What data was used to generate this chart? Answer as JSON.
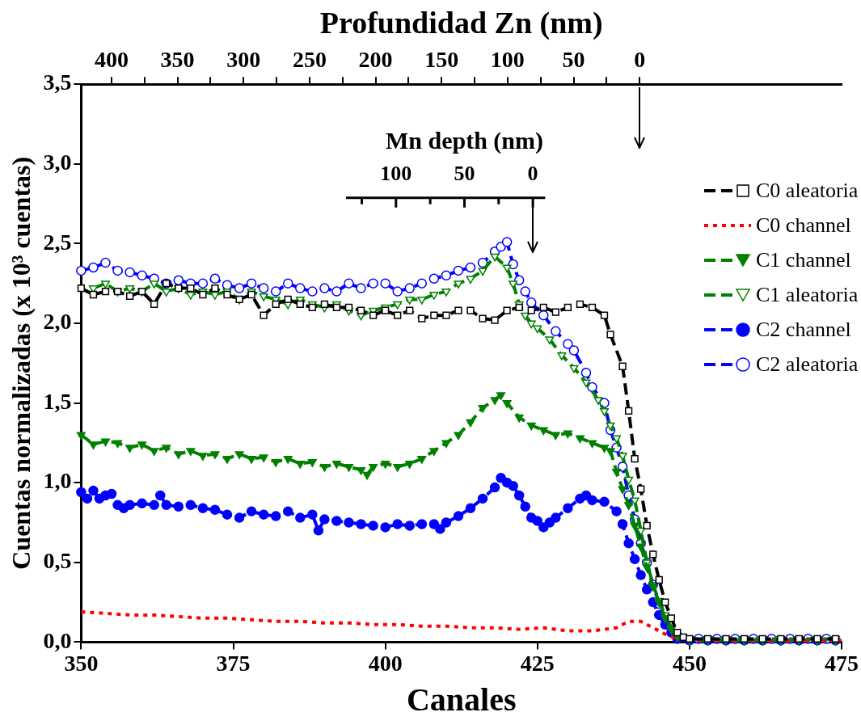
{
  "chart_data": {
    "type": "line",
    "xlabel": "Canales",
    "ylabel": "Cuentas normalizadas (x 10³ cuentas)",
    "x2label": "Profundidad Zn (nm)",
    "xlim": [
      350,
      475
    ],
    "xticks": [
      350,
      375,
      400,
      425,
      450,
      475
    ],
    "ylim": [
      0,
      3.5
    ],
    "yticks": [
      {
        "value": 0,
        "label": "0,0"
      },
      {
        "value": 0.5,
        "label": "0,5"
      },
      {
        "value": 1,
        "label": "1,0"
      },
      {
        "value": 1.5,
        "label": "1,5"
      },
      {
        "value": 2,
        "label": "2,0"
      },
      {
        "value": 2.5,
        "label": "2,5"
      },
      {
        "value": 3,
        "label": "3,0"
      },
      {
        "value": 3.5,
        "label": "3,5"
      }
    ],
    "x2lim": [
      423,
      -153
    ],
    "x2ticks": [
      400,
      {
        "value": 375,
        "label": null
      },
      350,
      {
        "value": 325,
        "label": null
      },
      300,
      {
        "value": 275,
        "label": null
      },
      250,
      {
        "value": 225,
        "label": null
      },
      200,
      {
        "value": 175,
        "label": null
      },
      150,
      {
        "value": 125,
        "label": null
      },
      100,
      {
        "value": 75,
        "label": null
      },
      50,
      {
        "value": 25,
        "label": null
      },
      0
    ],
    "annotations": [
      "Mn depth (nm)",
      "100",
      "50",
      "0"
    ],
    "ref_lines": [
      {
        "axis": "x2",
        "value": 0
      },
      {
        "axis": "x",
        "value": 424.3
      }
    ],
    "legend": "right",
    "grid": false,
    "series": [
      {
        "name": "C0 aleatoria",
        "color": "#000000",
        "marker": "square-open",
        "line_style": "dashed",
        "x": [
          350,
          352,
          354,
          356,
          358,
          360,
          362,
          364,
          366,
          368,
          370,
          372,
          374,
          376,
          378,
          380,
          382,
          384,
          386,
          388,
          390,
          392,
          394,
          396,
          398,
          400,
          402,
          404,
          406,
          408,
          410,
          412,
          414,
          416,
          418,
          420,
          422,
          424,
          426,
          428,
          430,
          432,
          434,
          436,
          437,
          439,
          440,
          441,
          442,
          443,
          444,
          445,
          446,
          447,
          448,
          449,
          450,
          453,
          456,
          459,
          462,
          465,
          468,
          471,
          474
        ],
        "values": [
          2.22,
          2.18,
          2.2,
          2.2,
          2.17,
          2.2,
          2.12,
          2.25,
          2.22,
          2.22,
          2.18,
          2.22,
          2.18,
          2.15,
          2.18,
          2.05,
          2.12,
          2.15,
          2.12,
          2.1,
          2.12,
          2.1,
          2.1,
          2.08,
          2.05,
          2.08,
          2.05,
          2.08,
          2.03,
          2.05,
          2.05,
          2.08,
          2.08,
          2.03,
          2.02,
          2.08,
          2.1,
          2.08,
          2.1,
          2.07,
          2.1,
          2.12,
          2.1,
          2.05,
          1.93,
          1.73,
          1.45,
          1.15,
          0.96,
          0.73,
          0.55,
          0.39,
          0.25,
          0.15,
          0.06,
          0.03,
          0.02,
          0.02,
          0.02,
          0.02,
          0.02,
          0.02,
          0.02,
          0.02,
          0.02
        ]
      },
      {
        "name": "C0 channel",
        "color": "#ff0000",
        "marker": "none",
        "line_style": "dotted",
        "x": [
          350,
          354,
          358,
          362,
          366,
          370,
          374,
          378,
          382,
          386,
          390,
          394,
          398,
          402,
          406,
          410,
          414,
          418,
          422,
          426,
          430,
          434,
          438,
          440,
          442,
          444,
          446,
          448,
          451,
          455,
          459,
          463,
          467,
          471,
          475
        ],
        "values": [
          0.19,
          0.18,
          0.17,
          0.17,
          0.16,
          0.15,
          0.15,
          0.14,
          0.13,
          0.13,
          0.12,
          0.12,
          0.11,
          0.11,
          0.1,
          0.1,
          0.09,
          0.09,
          0.08,
          0.09,
          0.07,
          0.07,
          0.09,
          0.13,
          0.13,
          0.09,
          0.05,
          0.02,
          0.01,
          0.01,
          0.01,
          0.01,
          0.01,
          0.01,
          0.01
        ]
      },
      {
        "name": "C1 channel",
        "color": "#008000",
        "marker": "triangle",
        "line_style": "dashed",
        "x": [
          350,
          352,
          354,
          356,
          358,
          360,
          362,
          364,
          366,
          368,
          370,
          372,
          374,
          376,
          378,
          380,
          382,
          384,
          386,
          388,
          390,
          392,
          394,
          396,
          397,
          398,
          400,
          402,
          404,
          406,
          408,
          410,
          412,
          414,
          416,
          418,
          419,
          420,
          422,
          424,
          426,
          428,
          430,
          432,
          434,
          436,
          437,
          438,
          439,
          440,
          441,
          442,
          443,
          444,
          445,
          446,
          447,
          448,
          450,
          453,
          456,
          459,
          462,
          465,
          468,
          471,
          474
        ],
        "values": [
          1.3,
          1.24,
          1.26,
          1.25,
          1.22,
          1.24,
          1.2,
          1.22,
          1.18,
          1.2,
          1.17,
          1.18,
          1.15,
          1.18,
          1.15,
          1.16,
          1.13,
          1.15,
          1.12,
          1.13,
          1.1,
          1.12,
          1.1,
          1.08,
          1.05,
          1.1,
          1.12,
          1.1,
          1.12,
          1.15,
          1.2,
          1.25,
          1.3,
          1.38,
          1.47,
          1.52,
          1.55,
          1.5,
          1.41,
          1.36,
          1.33,
          1.3,
          1.31,
          1.28,
          1.25,
          1.22,
          1.2,
          1.07,
          0.96,
          0.86,
          0.73,
          0.6,
          0.47,
          0.35,
          0.25,
          0.15,
          0.08,
          0.03,
          0.01,
          0.01,
          0.01,
          0.01,
          0.01,
          0.01,
          0.01,
          0.01,
          0.01
        ]
      },
      {
        "name": "C1 aleatoria",
        "color": "#008000",
        "marker": "triangle-open",
        "line_style": "dashed",
        "x": [
          352,
          354,
          356,
          358,
          360,
          362,
          364,
          366,
          368,
          370,
          372,
          374,
          376,
          378,
          380,
          382,
          384,
          386,
          388,
          390,
          392,
          394,
          396,
          398,
          400,
          402,
          404,
          406,
          408,
          410,
          412,
          414,
          416,
          418,
          420,
          421,
          422,
          423,
          424,
          425,
          427,
          429,
          431,
          433,
          435,
          436,
          437,
          438,
          439,
          440,
          441,
          442,
          443,
          444,
          445,
          446,
          447,
          448,
          450,
          453,
          456,
          459,
          462,
          465,
          468,
          471,
          474
        ],
        "values": [
          2.22,
          2.25,
          2.2,
          2.22,
          2.2,
          2.25,
          2.2,
          2.22,
          2.18,
          2.2,
          2.18,
          2.2,
          2.15,
          2.2,
          2.17,
          2.15,
          2.12,
          2.15,
          2.12,
          2.1,
          2.12,
          2.08,
          2.05,
          2.08,
          2.1,
          2.12,
          2.15,
          2.15,
          2.18,
          2.2,
          2.25,
          2.28,
          2.33,
          2.42,
          2.35,
          2.25,
          2.12,
          2.05,
          2.0,
          1.97,
          1.9,
          1.8,
          1.72,
          1.63,
          1.52,
          1.45,
          1.36,
          1.28,
          1.17,
          1.02,
          0.89,
          0.7,
          0.5,
          0.36,
          0.26,
          0.17,
          0.09,
          0.04,
          0.02,
          0.02,
          0.02,
          0.02,
          0.02,
          0.02,
          0.02,
          0.02,
          0.02
        ]
      },
      {
        "name": "C2 channel",
        "color": "#0000ff",
        "marker": "circle",
        "line_style": "dashed",
        "x": [
          350,
          351,
          352,
          353,
          354,
          355,
          356,
          357,
          358,
          360,
          362,
          363,
          364,
          366,
          368,
          370,
          372,
          374,
          376,
          378,
          380,
          382,
          384,
          386,
          388,
          389,
          390,
          392,
          394,
          396,
          398,
          400,
          402,
          404,
          406,
          408,
          409,
          410,
          412,
          414,
          416,
          418,
          419,
          420,
          421,
          422,
          423,
          424,
          425,
          426,
          427,
          428,
          430,
          432,
          433,
          434,
          436,
          438,
          439,
          440,
          441,
          442,
          443,
          444,
          445,
          446,
          447,
          448,
          450,
          453,
          456,
          459,
          462,
          465,
          468,
          471,
          474
        ],
        "values": [
          0.94,
          0.9,
          0.95,
          0.9,
          0.92,
          0.93,
          0.86,
          0.84,
          0.86,
          0.87,
          0.86,
          0.92,
          0.86,
          0.85,
          0.86,
          0.84,
          0.83,
          0.8,
          0.78,
          0.82,
          0.8,
          0.79,
          0.82,
          0.78,
          0.8,
          0.7,
          0.77,
          0.76,
          0.75,
          0.74,
          0.73,
          0.72,
          0.74,
          0.73,
          0.74,
          0.74,
          0.71,
          0.75,
          0.79,
          0.84,
          0.9,
          0.97,
          1.03,
          1.0,
          0.98,
          0.92,
          0.85,
          0.78,
          0.76,
          0.72,
          0.75,
          0.78,
          0.84,
          0.9,
          0.92,
          0.89,
          0.88,
          0.82,
          0.74,
          0.62,
          0.52,
          0.42,
          0.33,
          0.25,
          0.17,
          0.11,
          0.06,
          0.02,
          0.01,
          0.01,
          0.01,
          0.01,
          0.01,
          0.01,
          0.01,
          0.01,
          0.01
        ]
      },
      {
        "name": "C2 aleatoria",
        "color": "#0000ff",
        "marker": "circle-open",
        "line_style": "dashed",
        "x": [
          350,
          352,
          354,
          356,
          358,
          360,
          362,
          364,
          366,
          368,
          370,
          372,
          374,
          376,
          378,
          380,
          382,
          384,
          386,
          388,
          390,
          392,
          394,
          396,
          398,
          400,
          402,
          404,
          406,
          408,
          410,
          412,
          414,
          416,
          418,
          419,
          420,
          421,
          422,
          423,
          424,
          426,
          428,
          430,
          431,
          433,
          434,
          436,
          437,
          438,
          439,
          440,
          441,
          442,
          443,
          444,
          445,
          446,
          447,
          448,
          451.5,
          454.5,
          457.5,
          460.5,
          463.5,
          466.5,
          469.5,
          472.5
        ],
        "values": [
          2.33,
          2.35,
          2.38,
          2.33,
          2.32,
          2.3,
          2.28,
          2.25,
          2.27,
          2.25,
          2.25,
          2.28,
          2.24,
          2.22,
          2.25,
          2.22,
          2.2,
          2.25,
          2.22,
          2.2,
          2.22,
          2.2,
          2.25,
          2.22,
          2.25,
          2.25,
          2.2,
          2.22,
          2.25,
          2.28,
          2.3,
          2.33,
          2.35,
          2.38,
          2.45,
          2.48,
          2.51,
          2.37,
          2.27,
          2.2,
          2.13,
          2.05,
          1.95,
          1.87,
          1.83,
          1.69,
          1.6,
          1.5,
          1.33,
          1.22,
          1.1,
          0.92,
          0.77,
          0.62,
          0.5,
          0.36,
          0.24,
          0.15,
          null,
          0.04,
          0.02,
          0.02,
          0.02,
          0.02,
          0.02,
          0.02,
          0.02,
          0.02
        ]
      }
    ]
  }
}
